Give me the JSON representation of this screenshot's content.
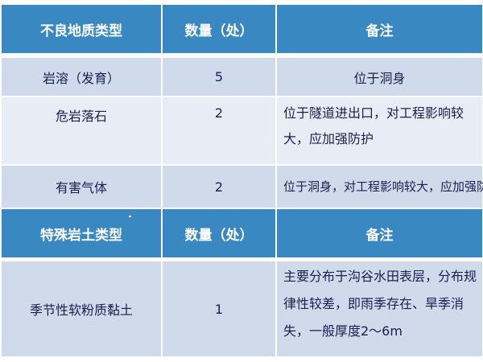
{
  "table1": {
    "headers": [
      "不良地质类型",
      "数量（处）",
      "备注"
    ],
    "rows": [
      {
        "type": "岩溶（发育）",
        "count": "5",
        "note": "位于洞身"
      },
      {
        "type": "危岩落石",
        "count": "2",
        "note": "位于隧道进出口，对工程影响较大，应加强防护"
      },
      {
        "type": "有害气体",
        "count": "2",
        "note": "位于洞身，对工程影响较大，应加强防护"
      }
    ]
  },
  "table2": {
    "headers": [
      "特殊岩土类型",
      "数量（处）",
      "备注"
    ],
    "rows": [
      {
        "type": "季节性软粉质黏土",
        "count": "1",
        "note": "主要分布于沟谷水田表层，分布规律性较差，即雨季存在、旱季消失，一般厚度2～6m"
      }
    ]
  },
  "colors": {
    "header": "#3a88c2",
    "row_dark": "#cfdaea",
    "row_light": "#e8edf5",
    "text": "#1c1f4f"
  }
}
